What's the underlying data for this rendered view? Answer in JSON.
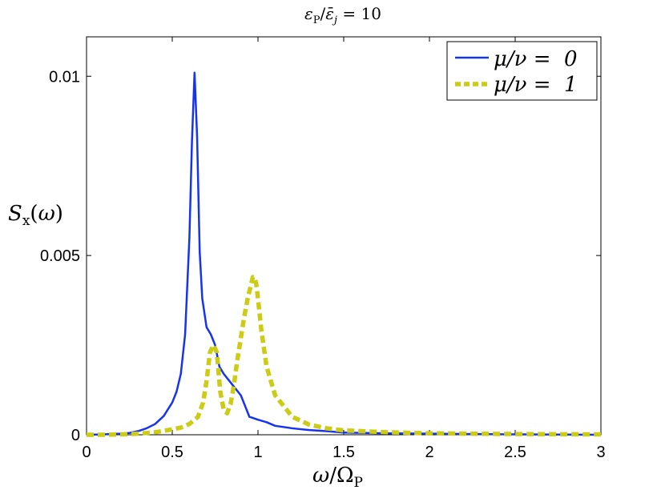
{
  "chart_data": {
    "type": "line",
    "title": "εP/ε̄j = 10",
    "xlabel": "ω/ΩP",
    "ylabel": "Sx(ω)",
    "xlim": [
      0,
      3
    ],
    "ylim": [
      0,
      0.0111
    ],
    "xticks": [
      0,
      0.5,
      1,
      1.5,
      2,
      2.5,
      3
    ],
    "xtick_labels": [
      "0",
      "0.5",
      "1",
      "1.5",
      "2",
      "2.5",
      "3"
    ],
    "yticks": [
      0,
      0.005,
      0.01
    ],
    "ytick_labels": [
      "0",
      "0.005",
      "0.01"
    ],
    "grid": false,
    "legend": "top-right",
    "series": [
      {
        "name": "μ/ν =  0",
        "color": "#1533f0",
        "style": "solid",
        "x": [
          0,
          0.1,
          0.2,
          0.25,
          0.3,
          0.35,
          0.4,
          0.45,
          0.5,
          0.525,
          0.55,
          0.575,
          0.6,
          0.615,
          0.63,
          0.645,
          0.66,
          0.675,
          0.7,
          0.725,
          0.75,
          0.775,
          0.8,
          0.85,
          0.9,
          0.95,
          1.0,
          1.05,
          1.1,
          1.2,
          1.3,
          1.4,
          1.5,
          1.75,
          2.0,
          2.5,
          3.0
        ],
        "y": [
          0,
          1e-05,
          3e-05,
          5e-05,
          0.0001,
          0.00018,
          0.0003,
          0.00052,
          0.0009,
          0.0012,
          0.0017,
          0.0028,
          0.0055,
          0.0082,
          0.0101,
          0.0083,
          0.0051,
          0.0038,
          0.003,
          0.0028,
          0.0025,
          0.0019,
          0.0017,
          0.0014,
          0.0011,
          0.0005,
          0.00042,
          0.00035,
          0.00025,
          0.00018,
          0.00013,
          0.0001,
          6e-05,
          4e-05,
          3e-05,
          1e-05,
          0
        ]
      },
      {
        "name": "μ/ν =  1",
        "color": "#cccc15",
        "style": "dashed",
        "x": [
          0,
          0.1,
          0.2,
          0.3,
          0.4,
          0.5,
          0.55,
          0.6,
          0.65,
          0.68,
          0.7,
          0.72,
          0.74,
          0.76,
          0.78,
          0.8,
          0.82,
          0.84,
          0.86,
          0.88,
          0.9,
          0.92,
          0.94,
          0.96,
          0.97,
          0.98,
          0.99,
          1.0,
          1.02,
          1.05,
          1.1,
          1.2,
          1.3,
          1.4,
          1.5,
          1.75,
          2.0,
          2.5,
          3.0
        ],
        "y": [
          0,
          0,
          1e-05,
          3e-05,
          7e-05,
          0.00015,
          0.0002,
          0.0003,
          0.0005,
          0.0009,
          0.0015,
          0.0023,
          0.0025,
          0.0023,
          0.0012,
          0.0007,
          0.0006,
          0.00085,
          0.0014,
          0.0021,
          0.0027,
          0.0033,
          0.0038,
          0.0042,
          0.0044,
          0.0044,
          0.0042,
          0.0038,
          0.0029,
          0.0019,
          0.0011,
          0.0005,
          0.00028,
          0.00018,
          0.00012,
          7e-05,
          4e-05,
          2e-05,
          1e-05
        ]
      }
    ]
  }
}
